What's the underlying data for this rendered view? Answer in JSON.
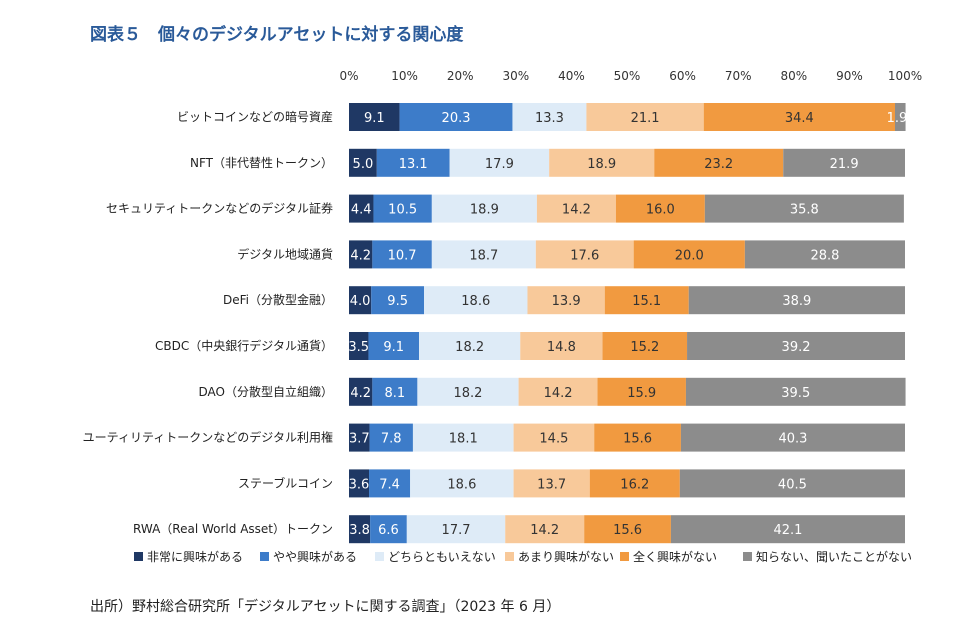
{
  "title": "図表５　個々のデジタルアセットに対する関心度",
  "source": "出所）野村総合研究所「デジタルアセットに関する調査」（2023 年 6 月）",
  "chart_data": {
    "type": "bar",
    "orientation": "horizontal",
    "stacked": "100%",
    "title": "図表５　個々のデジタルアセットに対する関心度",
    "xlim": [
      0,
      100
    ],
    "xticks": [
      "0%",
      "10%",
      "20%",
      "30%",
      "40%",
      "50%",
      "60%",
      "70%",
      "80%",
      "90%",
      "100%"
    ],
    "legend_position": "bottom",
    "grid": false,
    "categories": [
      "ビットコインなどの暗号資産",
      "NFT（非代替性トークン）",
      "セキュリティトークンなどのデジタル証券",
      "デジタル地域通貨",
      "DeFi（分散型金融）",
      "CBDC（中央銀行デジタル通貨）",
      "DAO（分散型自立組織）",
      "ユーティリティトークンなどのデジタル利用権",
      "ステーブルコイン",
      "RWA（Real World Asset）トークン"
    ],
    "series": [
      {
        "name": "非常に興味がある",
        "color": "#1f3864",
        "values": [
          9.1,
          5.0,
          4.4,
          4.2,
          4.0,
          3.5,
          4.2,
          3.7,
          3.6,
          3.8
        ]
      },
      {
        "name": "やや興味がある",
        "color": "#3d7cc9",
        "values": [
          20.3,
          13.1,
          10.5,
          10.7,
          9.5,
          9.1,
          8.1,
          7.8,
          7.4,
          6.6
        ]
      },
      {
        "name": "どちらともいえない",
        "color": "#deebf7",
        "values": [
          13.3,
          17.9,
          18.9,
          18.7,
          18.6,
          18.2,
          18.2,
          18.1,
          18.6,
          17.7
        ]
      },
      {
        "name": "あまり興味がない",
        "color": "#f8c99a",
        "values": [
          21.1,
          18.9,
          14.2,
          17.6,
          13.9,
          14.8,
          14.2,
          14.5,
          13.7,
          14.2
        ]
      },
      {
        "name": "全く興味がない",
        "color": "#f19a40",
        "values": [
          34.4,
          23.2,
          16.0,
          20.0,
          15.1,
          15.2,
          15.9,
          15.6,
          16.2,
          15.6
        ]
      },
      {
        "name": "知らない、聞いたことがない",
        "color": "#8c8c8c",
        "values": [
          1.9,
          21.9,
          35.8,
          28.8,
          38.9,
          39.2,
          39.5,
          40.3,
          40.5,
          42.1
        ]
      }
    ],
    "label_colors": [
      "#ffffff",
      "#ffffff",
      "#333333",
      "#333333",
      "#333333",
      "#ffffff"
    ]
  }
}
